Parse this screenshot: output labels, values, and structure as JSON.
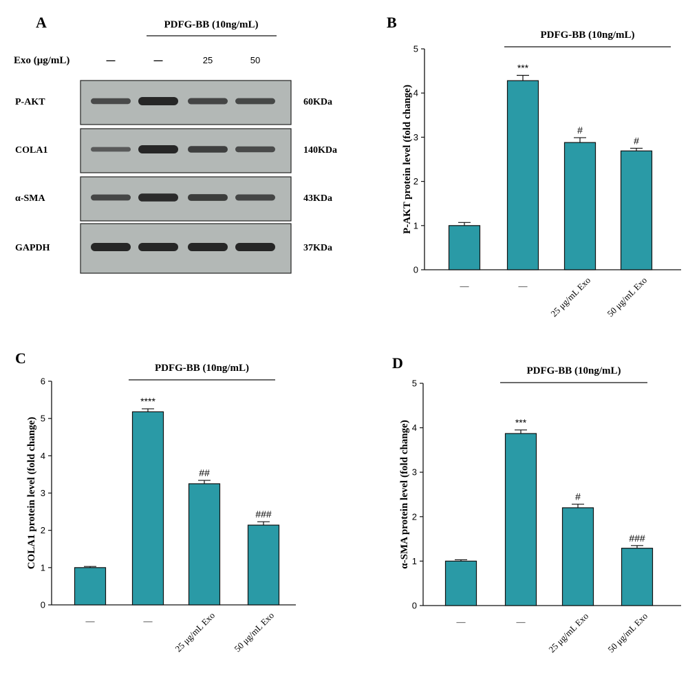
{
  "colors": {
    "bar_fill": "#2a9aa6",
    "bar_stroke": "#111111",
    "axis": "#111111",
    "blot_bg": "#b3b8b6",
    "band": "#262626"
  },
  "panel_a": {
    "letter": "A",
    "treatment_label": "PDFG-BB (10ng/mL)",
    "exo_label": "Exo (μg/mL)",
    "exo_doses": [
      "—",
      "—",
      "25",
      "50"
    ],
    "blots": [
      {
        "protein": "P-AKT",
        "size": "60KDa",
        "intensity": [
          0.55,
          1.0,
          0.62,
          0.58
        ]
      },
      {
        "protein": "COLA1",
        "size": "140KDa",
        "intensity": [
          0.35,
          1.0,
          0.7,
          0.55
        ]
      },
      {
        "protein": "α-SMA",
        "size": "43KDa",
        "intensity": [
          0.6,
          0.95,
          0.72,
          0.62
        ]
      },
      {
        "protein": "GAPDH",
        "size": "37KDa",
        "intensity": [
          1.0,
          1.0,
          1.0,
          1.0
        ]
      }
    ]
  },
  "chart_data": [
    {
      "panel": "B",
      "type": "bar",
      "treatment_label": "PDFG-BB (10ng/mL)",
      "categories": [
        "—",
        "—",
        "25 μg/mL Exo",
        "50 μg/mL Exo"
      ],
      "values": [
        1.0,
        4.28,
        2.88,
        2.69
      ],
      "errors": [
        0.07,
        0.12,
        0.11,
        0.06
      ],
      "significance": [
        "",
        "***",
        "#",
        "#"
      ],
      "ylabel": "P-AKT protein level (fold change)",
      "xlabel": "",
      "ylim": [
        0,
        5
      ],
      "yticks": [
        0,
        1,
        2,
        3,
        4,
        5
      ]
    },
    {
      "panel": "C",
      "type": "bar",
      "treatment_label": "PDFG-BB (10ng/mL)",
      "categories": [
        "—",
        "—",
        "25 μg/mL Exo",
        "50 μg/mL Exo"
      ],
      "values": [
        1.0,
        5.18,
        3.25,
        2.14
      ],
      "errors": [
        0.03,
        0.08,
        0.09,
        0.09
      ],
      "significance": [
        "",
        "****",
        "##",
        "###"
      ],
      "ylabel": "COLA1 protein level (fold change)",
      "xlabel": "",
      "ylim": [
        0,
        6
      ],
      "yticks": [
        0,
        1,
        2,
        3,
        4,
        5,
        6
      ]
    },
    {
      "panel": "D",
      "type": "bar",
      "treatment_label": "PDFG-BB (10ng/mL)",
      "categories": [
        "—",
        "—",
        "25 μg/mL Exo",
        "50 μg/mL Exo"
      ],
      "values": [
        1.0,
        3.87,
        2.2,
        1.29
      ],
      "errors": [
        0.03,
        0.08,
        0.08,
        0.06
      ],
      "significance": [
        "",
        "***",
        "#",
        "###"
      ],
      "ylabel": "α-SMA protein level (fold change)",
      "xlabel": "",
      "ylim": [
        0,
        5
      ],
      "yticks": [
        0,
        1,
        2,
        3,
        4,
        5
      ]
    }
  ]
}
